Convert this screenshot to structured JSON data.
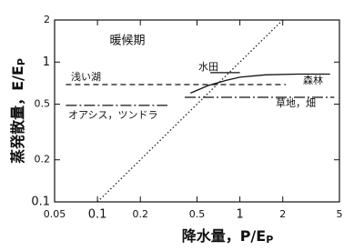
{
  "chart_data": {
    "type": "line",
    "title": "暖候期",
    "xlabel": "降水量，P/E",
    "xlabel_sub": "P",
    "ylabel": "蒸発散量，E/E",
    "ylabel_sub": "P",
    "xscale": "log",
    "yscale": "log",
    "xlim": [
      0.05,
      5
    ],
    "ylim": [
      0.1,
      2
    ],
    "xticks": [
      0.05,
      0.1,
      0.2,
      0.5,
      1,
      2,
      5
    ],
    "yticks": [
      0.1,
      0.2,
      0.5,
      1,
      2
    ],
    "reference_line": {
      "x": [
        0.1,
        2
      ],
      "values": [
        0.1,
        2
      ],
      "dash": "dotted",
      "color": "#222"
    },
    "series": [
      {
        "name": "浅い湖",
        "x": [
          0.06,
          2.1
        ],
        "values": [
          0.69,
          0.69
        ],
        "dash": "dashed",
        "color": "#111"
      },
      {
        "name": "オアシス，ツンドラ",
        "x": [
          0.06,
          0.31
        ],
        "values": [
          0.49,
          0.49
        ],
        "dash": "dashdot",
        "color": "#111"
      },
      {
        "name": "草地，畑",
        "x": [
          0.41,
          4.6
        ],
        "values": [
          0.56,
          0.56
        ],
        "dash": "dashdot",
        "color": "#111"
      },
      {
        "name": "水田",
        "x": [
          0.62,
          1.0
        ],
        "values": [
          0.84,
          0.84
        ],
        "dash": "solid",
        "color": "#111"
      },
      {
        "name": "森林",
        "x": [
          0.45,
          0.6,
          0.8,
          1,
          1.5,
          2.5,
          4.3
        ],
        "values": [
          0.6,
          0.68,
          0.74,
          0.78,
          0.81,
          0.82,
          0.82
        ],
        "dash": "solid",
        "color": "#111"
      }
    ]
  }
}
